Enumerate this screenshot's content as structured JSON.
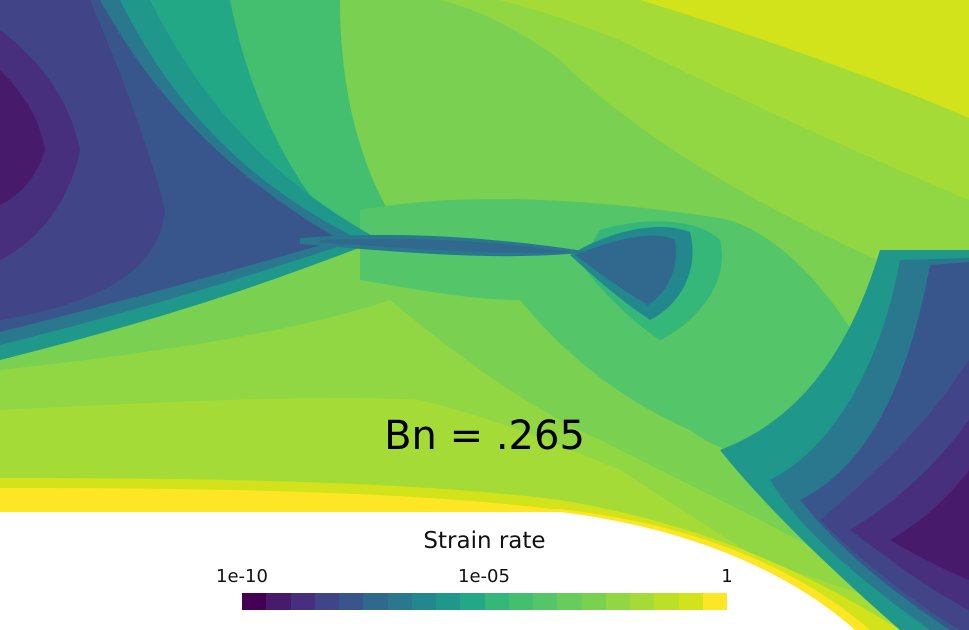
{
  "annotation": "Bn = .265",
  "colorbar": {
    "title": "Strain rate",
    "ticks": [
      {
        "label": "1e-10",
        "value": 1e-10
      },
      {
        "label": "1e-05",
        "value": 1e-05
      },
      {
        "label": "1",
        "value": 1
      }
    ],
    "scale": "log",
    "colormap": "viridis",
    "levels": 20,
    "colors": [
      "#440154",
      "#481a6c",
      "#472f7d",
      "#414487",
      "#39568c",
      "#31688e",
      "#2a788e",
      "#23888e",
      "#1f988b",
      "#22a884",
      "#35b779",
      "#44bf70",
      "#54c568",
      "#67cc5c",
      "#7ad151",
      "#90d743",
      "#a5db36",
      "#bddf26",
      "#d2e21b",
      "#fde725"
    ]
  }
}
